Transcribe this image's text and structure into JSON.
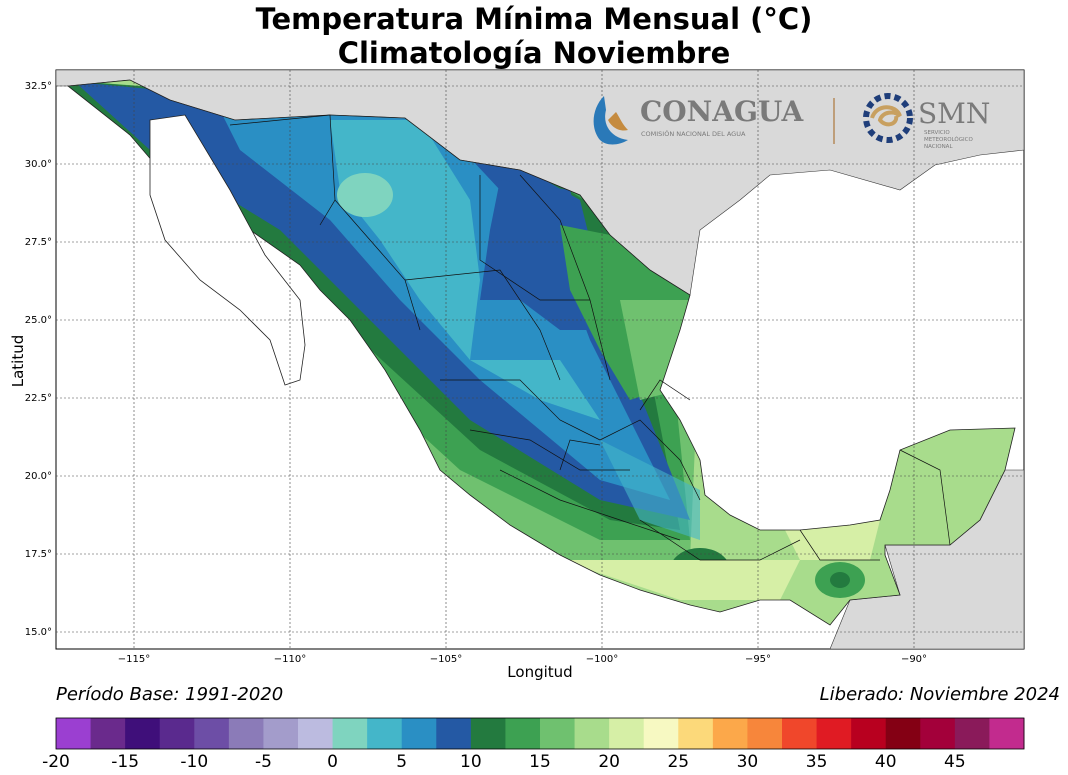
{
  "title_line1": "Temperatura Mínima Mensual (°C)",
  "title_line2": "Climatología Noviembre",
  "xlabel": "Longitud",
  "ylabel": "Latitud",
  "footer_left": "Período Base: 1991-2020",
  "footer_right": "Liberado: Noviembre 2024",
  "logos": {
    "conagua_name": "CONAGUA",
    "conagua_sub": "COMISIÓN NACIONAL DEL AGUA",
    "smn_name": "SMN",
    "smn_sub": [
      "SERVICIO",
      "METEOROLÓGICO",
      "NACIONAL"
    ]
  },
  "lat_ticks": [
    "32.5°",
    "30.0°",
    "27.5°",
    "25.0°",
    "22.5°",
    "20.0°",
    "17.5°",
    "15.0°"
  ],
  "lon_ticks": [
    "−115°",
    "−110°",
    "−105°",
    "−100°",
    "−95°",
    "−90°"
  ],
  "colorbar": {
    "labels": [
      "-20",
      "-15",
      "-10",
      "-5",
      "0",
      "5",
      "10",
      "15",
      "20",
      "25",
      "30",
      "35",
      "40",
      "45"
    ],
    "colors": [
      "#9b3fd1",
      "#6a2a8c",
      "#3f0f7a",
      "#5a2a8e",
      "#6d4ea6",
      "#8b7bb8",
      "#a39ccb",
      "#bcbbe0",
      "#7fd4bf",
      "#44b6c9",
      "#2a8fc4",
      "#2459a4",
      "#237a3f",
      "#3da152",
      "#6fc16f",
      "#a8dc8c",
      "#d6efa6",
      "#f7f9c2",
      "#fcd97a",
      "#fca84a",
      "#f7863b",
      "#f0472b",
      "#e01b23",
      "#b8001f",
      "#840014",
      "#a3003a",
      "#8a1a5a",
      "#c22b8e"
    ]
  },
  "legend_colors": {
    "land_outside": "#d9d9d9",
    "ocean": "#ffffff"
  }
}
